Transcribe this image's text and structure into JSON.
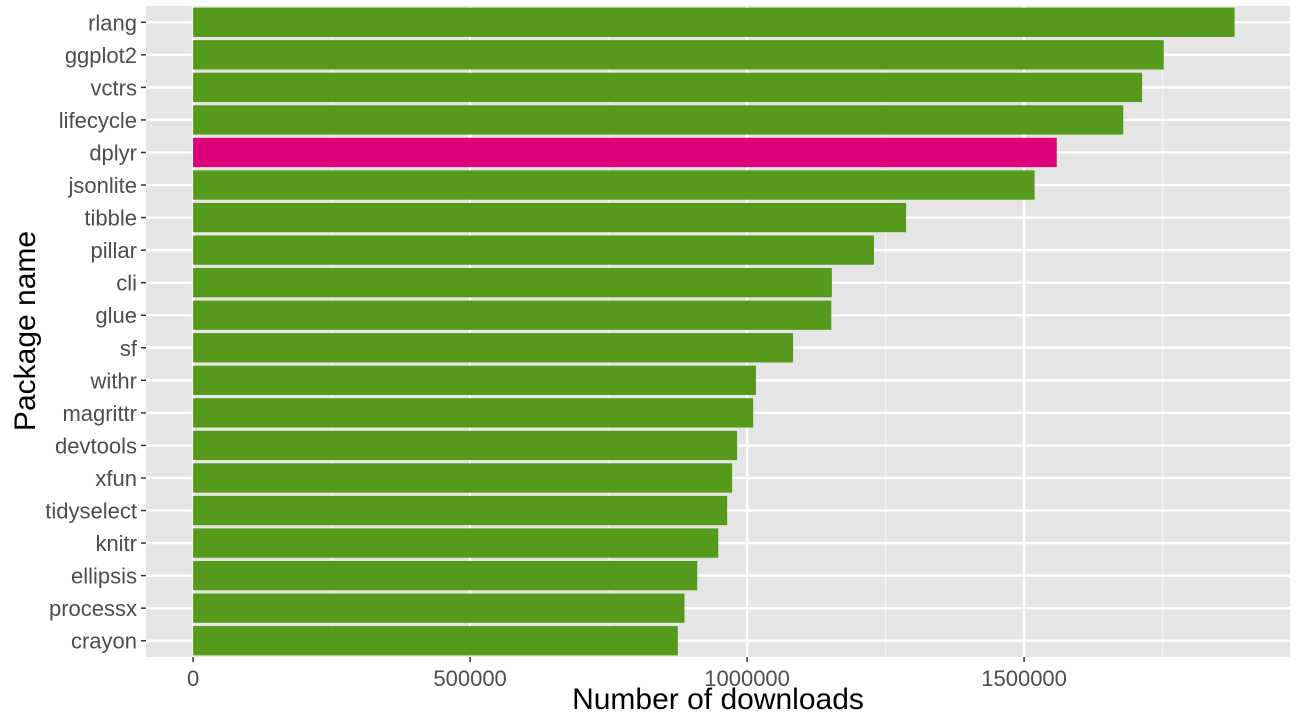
{
  "chart_data": {
    "type": "bar",
    "orientation": "horizontal",
    "xlabel": "Number of downloads",
    "ylabel": "Package name",
    "xlim": [
      -85000,
      1980000
    ],
    "x_ticks": [
      0,
      500000,
      1000000,
      1500000
    ],
    "x_tick_labels": [
      "0",
      "500000",
      "1000000",
      "1500000"
    ],
    "grid": true,
    "background": "#e5e5e5",
    "bar_color": "#559a1a",
    "highlight_color": "#df0179",
    "highlight_category": "dplyr",
    "categories": [
      "rlang",
      "ggplot2",
      "vctrs",
      "lifecycle",
      "dplyr",
      "jsonlite",
      "tibble",
      "pillar",
      "cli",
      "glue",
      "sf",
      "withr",
      "magrittr",
      "devtools",
      "xfun",
      "tidyselect",
      "knitr",
      "ellipsis",
      "processx",
      "crayon"
    ],
    "values": [
      1880000,
      1752000,
      1713000,
      1679000,
      1559000,
      1519000,
      1287000,
      1229000,
      1153000,
      1152000,
      1083000,
      1016000,
      1011000,
      982000,
      973000,
      964000,
      948000,
      910000,
      887000,
      875000
    ]
  }
}
